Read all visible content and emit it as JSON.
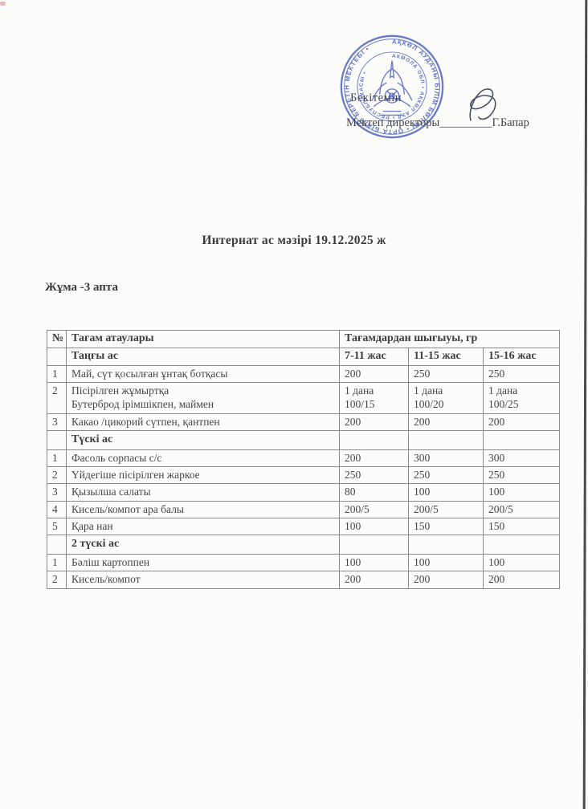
{
  "page": {
    "approve_label": "Бекітемін",
    "director_prefix": "Мектеп директоры",
    "director_underscores": "_________",
    "director_name": "Г.Бапар",
    "title": "Интернат ас мәзірі 19.12.2025 ж",
    "week_label": "Жұма -3 апта"
  },
  "stamp": {
    "color": "#5468c4",
    "ring_text_outer": "АҚКӨЛ АУДАНЫ БІЛІМ БӨЛІМІ • ОРТА БІЛІМ БЕРЕТІН МЕКТЕБІ • ",
    "ring_text_inner": "АКМОЛА ОБЛ • АҚКӨЛ АУД • РЕСПУБЛИКАСЫ •"
  },
  "table": {
    "header": {
      "num": "№",
      "name": "Тағам атаулары",
      "output": "Тағамдардан шығыуы, гр"
    },
    "age_headers": [
      "7-11 жас",
      "11-15 жас",
      "15-16 жас"
    ],
    "sections": [
      {
        "title": "Таңғы ас",
        "rows": [
          {
            "num": "1",
            "name": "Май, сүт қосылған ұнтақ ботқасы",
            "values": [
              "200",
              "250",
              "250"
            ]
          },
          {
            "num": "2",
            "name": "Пісірілген жұмыртқа\nБутерброд ірімшікпен, маймен",
            "values": [
              "1 дана\n100/15",
              "1 дана\n100/20",
              "1 дана\n100/25"
            ]
          },
          {
            "num": "3",
            "name": "Какао /цикорий сүтпен, қантпен",
            "values": [
              "200",
              "200",
              "200"
            ]
          }
        ]
      },
      {
        "title": "Түскі ас",
        "rows": [
          {
            "num": "1",
            "name": "Фасоль сорпасы с/с",
            "values": [
              "200",
              "300",
              "300"
            ]
          },
          {
            "num": "2",
            "name": "Үйдегіше пісірілген жаркое",
            "values": [
              "250",
              "250",
              "250"
            ]
          },
          {
            "num": "3",
            "name": "Қызылша салаты",
            "values": [
              "80",
              "100",
              "100"
            ]
          },
          {
            "num": "4",
            "name": "Кисель/компот ара балы",
            "values": [
              "200/5",
              "200/5",
              "200/5"
            ]
          },
          {
            "num": "5",
            "name": "Қара нан",
            "values": [
              "100",
              "150",
              "150"
            ]
          }
        ]
      },
      {
        "title": "2 түскі ас",
        "rows": [
          {
            "num": "1",
            "name": "Бәліш картоппен",
            "values": [
              "100",
              "100",
              "100"
            ]
          },
          {
            "num": "2",
            "name": "Кисель/компот",
            "values": [
              "200",
              "200",
              "200"
            ]
          }
        ]
      }
    ]
  }
}
